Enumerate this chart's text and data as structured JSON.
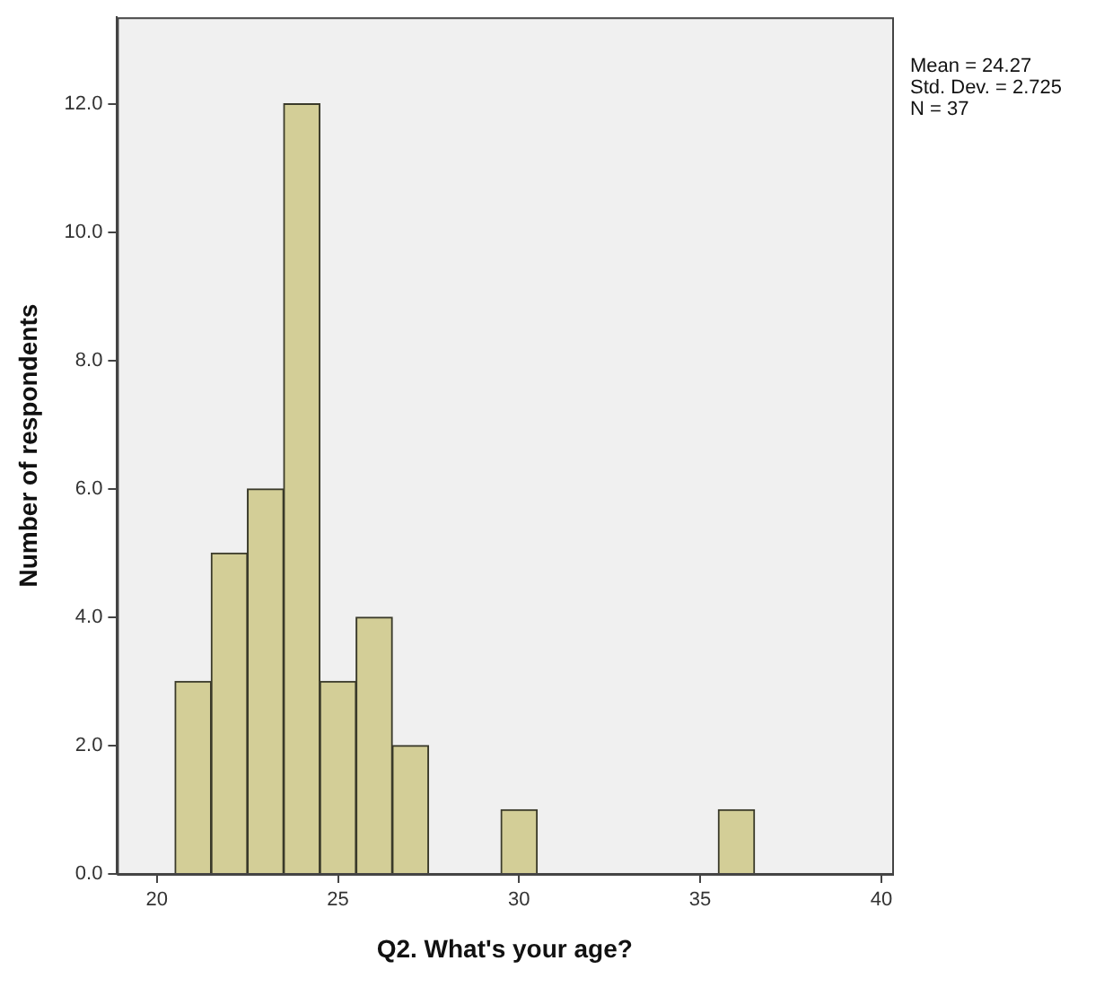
{
  "chart_data": {
    "type": "histogram",
    "xlabel": "Q2. What's your age?",
    "ylabel": "Number of respondents",
    "bins": [
      20.5,
      21.5,
      22.5,
      23.5,
      24.5,
      25.5,
      26.5,
      27.5,
      28.5,
      29.5,
      30.5,
      31.5,
      32.5,
      33.5,
      34.5,
      35.5,
      36.5
    ],
    "values": [
      3,
      5,
      6,
      12,
      3,
      4,
      2,
      0,
      0,
      1,
      0,
      0,
      0,
      0,
      0,
      1
    ],
    "color": "#d3ce97",
    "xlim": [
      18.9,
      40.3
    ],
    "xticks": [
      20,
      25,
      30,
      35,
      40
    ],
    "ylim": [
      0,
      13.35
    ],
    "yticks": [
      {
        "value": 0,
        "label": "0.0"
      },
      {
        "value": 2,
        "label": "2.0"
      },
      {
        "value": 4,
        "label": "4.0"
      },
      {
        "value": 6,
        "label": "6.0"
      },
      {
        "value": 8,
        "label": "8.0"
      },
      {
        "value": 10,
        "label": "10.0"
      },
      {
        "value": 12,
        "label": "12.0"
      }
    ],
    "annotations": [
      "Mean = 24.27",
      "Std. Dev. = 2.725",
      "N = 37"
    ],
    "grid": false,
    "legend": false
  }
}
